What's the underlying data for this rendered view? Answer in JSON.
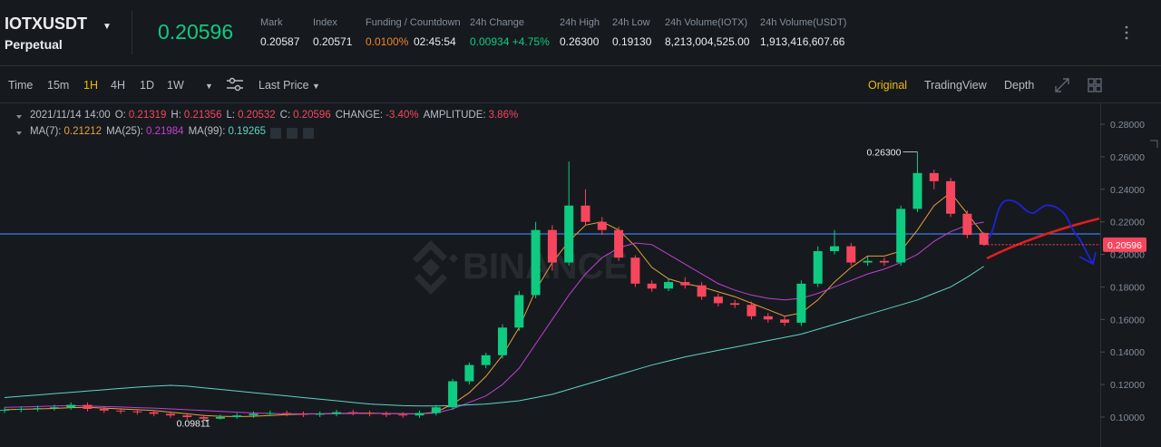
{
  "header": {
    "symbol": "IOTXUSDT",
    "contract": "Perpetual",
    "last_price": "0.20596",
    "stats": [
      {
        "label": "Mark",
        "values": [
          "0.20587"
        ],
        "color": "#eaecef"
      },
      {
        "label": "Index",
        "values": [
          "0.20571"
        ],
        "color": "#eaecef"
      },
      {
        "label": "Funding / Countdown",
        "values": [
          "0.0100%",
          "02:45:54"
        ],
        "color": "#f0822b"
      },
      {
        "label": "24h Change",
        "values": [
          "0.00934 +4.75%"
        ],
        "color": "#0ecb81"
      },
      {
        "label": "24h High",
        "values": [
          "0.26300"
        ],
        "color": "#eaecef"
      },
      {
        "label": "24h Low",
        "values": [
          "0.19130"
        ],
        "color": "#eaecef"
      },
      {
        "label": "24h Volume(IOTX)",
        "values": [
          "8,213,004,525.00"
        ],
        "color": "#eaecef"
      },
      {
        "label": "24h Volume(USDT)",
        "values": [
          "1,913,416,607.66"
        ],
        "color": "#eaecef"
      }
    ]
  },
  "toolbar": {
    "intervals": [
      "Time",
      "15m",
      "1H",
      "4H",
      "1D",
      "1W"
    ],
    "active_interval": "1H",
    "price_type": "Last Price",
    "views": [
      "Original",
      "TradingView",
      "Depth"
    ],
    "active_view": "Original"
  },
  "chart_data": {
    "type": "candlestick",
    "watermark": "BINANCE",
    "info": {
      "date": "2021/11/14 14:00",
      "fields": [
        {
          "label": "O:",
          "value": "0.21319"
        },
        {
          "label": "H:",
          "value": "0.21356"
        },
        {
          "label": "L:",
          "value": "0.20532"
        },
        {
          "label": "C:",
          "value": "0.20596"
        },
        {
          "label": "CHANGE:",
          "value": "-3.40%"
        },
        {
          "label": "AMPLITUDE:",
          "value": "3.86%"
        }
      ]
    },
    "up_color": "#0ecb81",
    "down_color": "#f6465d",
    "open": [
      0.104,
      0.1045,
      0.105,
      0.1055,
      0.106,
      0.1075,
      0.105,
      0.104,
      0.1035,
      0.103,
      0.102,
      0.101,
      0.1,
      0.099,
      0.1,
      0.101,
      0.102,
      0.1025,
      0.102,
      0.1015,
      0.102,
      0.103,
      0.1025,
      0.102,
      0.1015,
      0.101,
      0.1025,
      0.106,
      0.122,
      0.132,
      0.138,
      0.155,
      0.175,
      0.215,
      0.195,
      0.23,
      0.22,
      0.215,
      0.198,
      0.182,
      0.179,
      0.183,
      0.181,
      0.174,
      0.17,
      0.169,
      0.162,
      0.16,
      0.158,
      0.182,
      0.202,
      0.205,
      0.195,
      0.196,
      0.195,
      0.228,
      0.25,
      0.245,
      0.225,
      0.21319
    ],
    "high": [
      0.106,
      0.1065,
      0.107,
      0.1075,
      0.109,
      0.109,
      0.1065,
      0.1055,
      0.105,
      0.1045,
      0.1035,
      0.1025,
      0.1015,
      0.1015,
      0.1025,
      0.1035,
      0.104,
      0.104,
      0.1035,
      0.1035,
      0.1045,
      0.1045,
      0.104,
      0.1035,
      0.103,
      0.104,
      0.1075,
      0.1235,
      0.1335,
      0.1395,
      0.157,
      0.1775,
      0.22,
      0.218,
      0.257,
      0.24,
      0.223,
      0.217,
      0.1995,
      0.184,
      0.185,
      0.186,
      0.183,
      0.176,
      0.172,
      0.171,
      0.164,
      0.162,
      0.184,
      0.205,
      0.215,
      0.207,
      0.199,
      0.198,
      0.23,
      0.263,
      0.252,
      0.247,
      0.227,
      0.21356
    ],
    "low": [
      0.1025,
      0.103,
      0.1035,
      0.104,
      0.1045,
      0.1035,
      0.1025,
      0.102,
      0.1015,
      0.1005,
      0.0995,
      0.0985,
      0.09811,
      0.0985,
      0.099,
      0.0995,
      0.1005,
      0.1005,
      0.1,
      0.1,
      0.1005,
      0.101,
      0.1005,
      0.1,
      0.0995,
      0.0995,
      0.101,
      0.1045,
      0.12,
      0.13,
      0.136,
      0.153,
      0.173,
      0.19,
      0.193,
      0.218,
      0.212,
      0.196,
      0.18,
      0.177,
      0.1775,
      0.179,
      0.172,
      0.168,
      0.167,
      0.16,
      0.158,
      0.156,
      0.156,
      0.18,
      0.2,
      0.193,
      0.193,
      0.193,
      0.193,
      0.226,
      0.24,
      0.223,
      0.21,
      0.20532
    ],
    "close": [
      0.1045,
      0.105,
      0.1055,
      0.106,
      0.1075,
      0.105,
      0.104,
      0.1035,
      0.103,
      0.102,
      0.101,
      0.1,
      0.099,
      0.1,
      0.101,
      0.102,
      0.1025,
      0.102,
      0.1015,
      0.102,
      0.103,
      0.1025,
      0.102,
      0.1015,
      0.101,
      0.1025,
      0.106,
      0.122,
      0.132,
      0.138,
      0.155,
      0.175,
      0.215,
      0.195,
      0.23,
      0.22,
      0.215,
      0.198,
      0.182,
      0.179,
      0.183,
      0.181,
      0.174,
      0.17,
      0.169,
      0.162,
      0.16,
      0.158,
      0.182,
      0.202,
      0.205,
      0.195,
      0.196,
      0.195,
      0.228,
      0.25,
      0.245,
      0.225,
      0.212,
      0.20596
    ],
    "series": [
      {
        "name": "MA(7):",
        "label": "0.21212",
        "color": "#e5a03c",
        "values": [
          0.1045,
          0.1048,
          0.105,
          0.1053,
          0.1058,
          0.106,
          0.1055,
          0.105,
          0.1045,
          0.104,
          0.103,
          0.102,
          0.101,
          0.1005,
          0.1003,
          0.1005,
          0.101,
          0.1015,
          0.1018,
          0.102,
          0.1022,
          0.1024,
          0.1024,
          0.1022,
          0.102,
          0.102,
          0.103,
          0.108,
          0.115,
          0.125,
          0.138,
          0.155,
          0.178,
          0.195,
          0.208,
          0.218,
          0.22,
          0.215,
          0.205,
          0.192,
          0.185,
          0.182,
          0.18,
          0.177,
          0.174,
          0.17,
          0.166,
          0.162,
          0.164,
          0.172,
          0.183,
          0.192,
          0.199,
          0.199,
          0.202,
          0.215,
          0.23,
          0.238,
          0.225,
          0.21212
        ]
      },
      {
        "name": "MA(25):",
        "label": "0.21984",
        "color": "#c23fd4",
        "values": [
          0.106,
          0.1062,
          0.1065,
          0.1068,
          0.107,
          0.1068,
          0.1065,
          0.1062,
          0.1058,
          0.1055,
          0.105,
          0.1045,
          0.104,
          0.1035,
          0.103,
          0.1025,
          0.1022,
          0.102,
          0.102,
          0.102,
          0.102,
          0.1022,
          0.1022,
          0.1022,
          0.102,
          0.102,
          0.1025,
          0.105,
          0.109,
          0.113,
          0.12,
          0.13,
          0.145,
          0.16,
          0.175,
          0.188,
          0.198,
          0.204,
          0.207,
          0.206,
          0.2,
          0.194,
          0.188,
          0.182,
          0.178,
          0.175,
          0.173,
          0.172,
          0.173,
          0.176,
          0.18,
          0.184,
          0.188,
          0.191,
          0.195,
          0.2,
          0.208,
          0.214,
          0.218,
          0.21984
        ]
      },
      {
        "name": "MA(99):",
        "label": "0.19265",
        "color": "#5fd3c6",
        "values": [
          0.112,
          0.1128,
          0.1136,
          0.1144,
          0.1152,
          0.116,
          0.1168,
          0.1176,
          0.1184,
          0.119,
          0.1195,
          0.119,
          0.118,
          0.117,
          0.116,
          0.115,
          0.114,
          0.113,
          0.112,
          0.111,
          0.11,
          0.109,
          0.108,
          0.1075,
          0.107,
          0.1068,
          0.1068,
          0.107,
          0.1075,
          0.108,
          0.109,
          0.11,
          0.112,
          0.114,
          0.117,
          0.12,
          0.123,
          0.126,
          0.129,
          0.132,
          0.1345,
          0.137,
          0.139,
          0.141,
          0.143,
          0.145,
          0.147,
          0.149,
          0.151,
          0.154,
          0.157,
          0.16,
          0.163,
          0.166,
          0.169,
          0.172,
          0.176,
          0.18,
          0.186,
          0.19265
        ]
      }
    ],
    "high_label": {
      "value": 0.263,
      "label": "0.26300"
    },
    "low_label": {
      "value": 0.09811,
      "label": "0.09811"
    },
    "last_price": 0.20596,
    "ylim": [
      0.0816,
      0.2934
    ],
    "yticks": [
      {
        "value": 0.28,
        "label": "0.28000"
      },
      {
        "value": 0.26,
        "label": "0.26000"
      },
      {
        "value": 0.24,
        "label": "0.24000"
      },
      {
        "value": 0.22,
        "label": "0.22000"
      },
      {
        "value": 0.2,
        "label": "0.20000"
      },
      {
        "value": 0.18,
        "label": "0.18000"
      },
      {
        "value": 0.16,
        "label": "0.16000"
      },
      {
        "value": 0.14,
        "label": "0.14000"
      },
      {
        "value": 0.12,
        "label": "0.12000"
      },
      {
        "value": 0.1,
        "label": "0.10000"
      }
    ]
  }
}
